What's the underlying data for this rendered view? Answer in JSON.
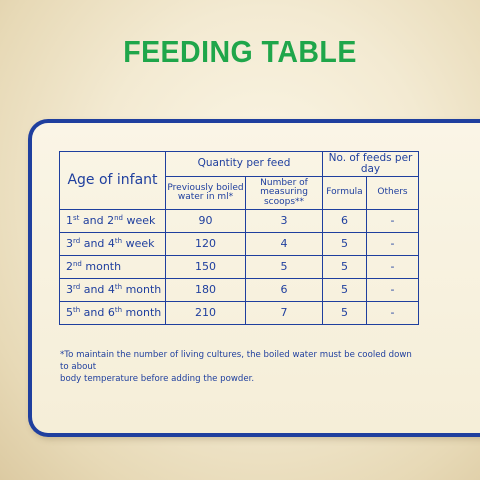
{
  "title": "FEEDING TABLE",
  "table": {
    "age_header": "Age of infant",
    "quantity_header": "Quantity per feed",
    "feeds_header": "No. of feeds per day",
    "water_header": "Previously boiled water in ml*",
    "scoops_header": "Number of measuring scoops**",
    "formula_header": "Formula",
    "others_header": "Others",
    "rows": [
      {
        "age_a": "1",
        "sup_a": "st",
        "mid": " and 2",
        "sup_b": "nd",
        "tail": " week",
        "water": "90",
        "scoops": "3",
        "formula": "6",
        "others": "-"
      },
      {
        "age_a": "3",
        "sup_a": "rd",
        "mid": " and 4",
        "sup_b": "th",
        "tail": " week",
        "water": "120",
        "scoops": "4",
        "formula": "5",
        "others": "-"
      },
      {
        "age_a": "2",
        "sup_a": "nd",
        "mid": " month",
        "sup_b": "",
        "tail": "",
        "water": "150",
        "scoops": "5",
        "formula": "5",
        "others": "-"
      },
      {
        "age_a": "3",
        "sup_a": "rd",
        "mid": " and 4",
        "sup_b": "th",
        "tail": " month",
        "water": "180",
        "scoops": "6",
        "formula": "5",
        "others": "-"
      },
      {
        "age_a": "5",
        "sup_a": "th",
        "mid": " and 6",
        "sup_b": "th",
        "tail": " month",
        "water": "210",
        "scoops": "7",
        "formula": "5",
        "others": "-"
      }
    ]
  },
  "footnote_line1": "*To maintain the number of living cultures, the boiled water must be cooled down to about",
  "footnote_line2": "body temperature before adding the powder.",
  "colors": {
    "title_green": "#1fa64a",
    "table_blue": "#1f3f9e",
    "background_cream": "#f3ead2"
  }
}
